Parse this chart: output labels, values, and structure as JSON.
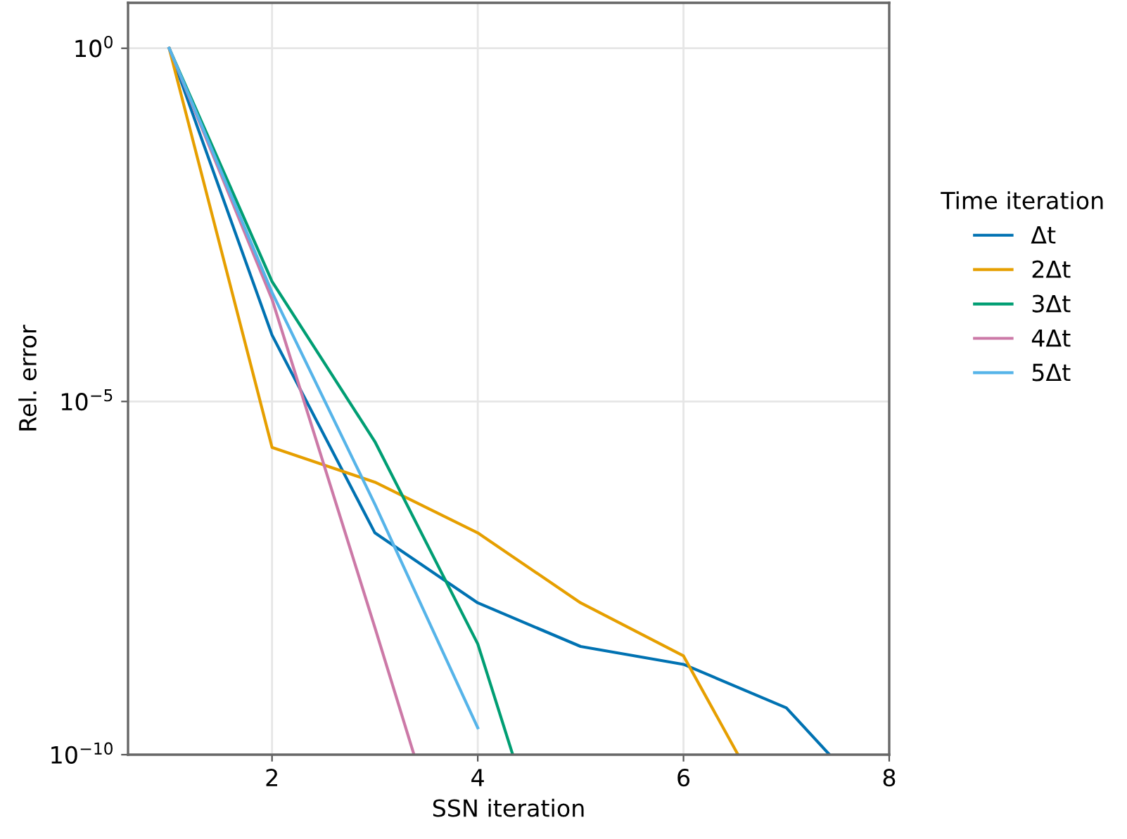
{
  "chart_data": {
    "type": "line",
    "xlabel": "SSN iteration",
    "ylabel": "Rel. error",
    "legend_title": "Time iteration",
    "log": "y",
    "xlim": [
      0.6,
      8
    ],
    "xticks": [
      2,
      4,
      6,
      8
    ],
    "ylim": [
      1e-10,
      4.4
    ],
    "yticks": [
      {
        "value": 1,
        "label": "10$^{0}$"
      },
      {
        "value": 1e-05,
        "label": "10$^{−5}$"
      },
      {
        "value": 1e-10,
        "label": "10$^{−10}$"
      }
    ],
    "grid": true,
    "legend": "right",
    "marker": "none",
    "line_style": "solid",
    "series": [
      {
        "name": "Δt",
        "color": "#0072b2",
        "x": [
          1,
          2,
          3,
          4,
          5,
          6,
          7,
          7.42
        ],
        "values": [
          1,
          8.7e-05,
          1.38e-07,
          1.41e-08,
          3.4e-09,
          1.9e-09,
          4.6e-10,
          1e-10
        ]
      },
      {
        "name": "2Δt",
        "color": "#e69f00",
        "x": [
          1,
          2,
          3,
          4,
          5,
          6,
          6.53
        ],
        "values": [
          1,
          2.24e-06,
          7.2e-07,
          1.38e-07,
          1.41e-08,
          2.5e-09,
          1e-10
        ]
      },
      {
        "name": "3Δt",
        "color": "#009e73",
        "x": [
          1,
          2,
          3,
          4,
          4.34
        ],
        "values": [
          1,
          0.0005,
          2.7e-06,
          3.7e-09,
          1e-10
        ]
      },
      {
        "name": "4Δt",
        "color": "#cc79a7",
        "x": [
          1,
          2,
          3,
          3.38
        ],
        "values": [
          1,
          0.00028,
          6.3e-09,
          1e-10
        ]
      },
      {
        "name": "5Δt",
        "color": "#56b4e9",
        "x": [
          1,
          2,
          3,
          4
        ],
        "values": [
          1,
          0.00035,
          3.5e-07,
          2.4e-10
        ]
      }
    ]
  }
}
